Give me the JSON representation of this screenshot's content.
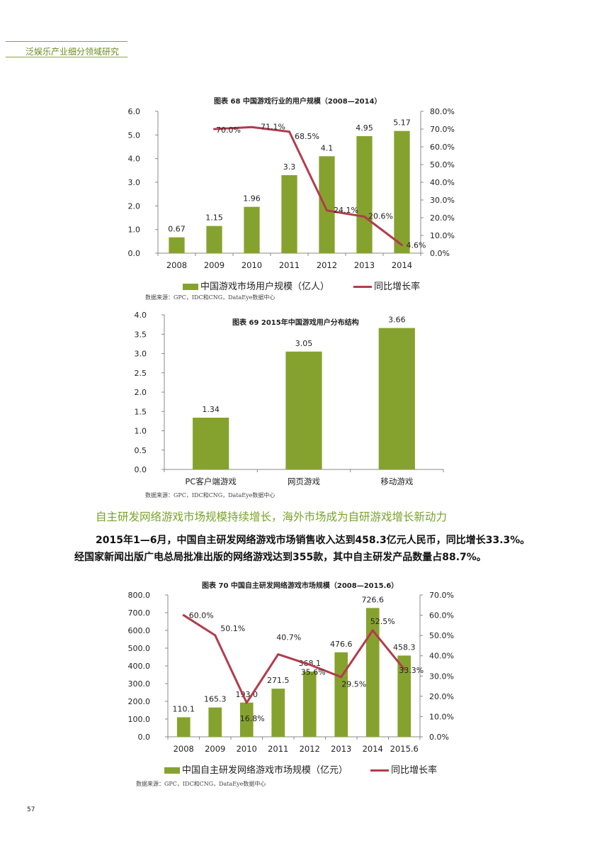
{
  "header": {
    "title": "泛娱乐产业细分领域研究"
  },
  "page_number": "57",
  "section": {
    "heading": "自主研发网络游戏市场规模持续增长，海外市场成为自研游戏增长新动力",
    "paragraph_line1": "2015年1—6月，中国自主研发网络游戏市场销售收入达到458.3亿元人民币，同比增长33.3%。",
    "paragraph_line2": "经国家新闻出版广电总局批准出版的网络游戏达到355款，其中自主研发产品数量占88.7%。"
  },
  "colors": {
    "bar": "#86a22e",
    "line": "#b13c4c",
    "accent": "#7aa22a"
  },
  "chart_data": [
    {
      "type": "bar",
      "title": "图表 68 中国游戏行业的用户规模（2008—2014）",
      "categories": [
        "2008",
        "2009",
        "2010",
        "2011",
        "2012",
        "2013",
        "2014"
      ],
      "series": [
        {
          "name": "中国游戏市场用户规模（亿人）",
          "type": "bar",
          "values": [
            0.67,
            1.15,
            1.96,
            3.3,
            4.1,
            4.95,
            5.17
          ],
          "labels": [
            "0.67",
            "1.15",
            "1.96",
            "3.3",
            "4.1",
            "4.95",
            "5.17"
          ]
        },
        {
          "name": "同比增长率",
          "type": "line",
          "axis": "right",
          "values": [
            null,
            70.0,
            71.1,
            68.5,
            24.1,
            20.6,
            4.6
          ],
          "labels": [
            "",
            "70.0%",
            "71.1%",
            "68.5%",
            "24.1%",
            "20.6%",
            "4.6%"
          ]
        }
      ],
      "y_left": {
        "ylim": [
          0,
          6
        ],
        "ticks": [
          "0.0",
          "1.0",
          "2.0",
          "3.0",
          "4.0",
          "5.0",
          "6.0"
        ]
      },
      "y_right": {
        "ylim": [
          0,
          80
        ],
        "ticks": [
          "0.0%",
          "10.0%",
          "20.0%",
          "30.0%",
          "40.0%",
          "50.0%",
          "60.0%",
          "70.0%",
          "80.0%"
        ]
      },
      "legend": "bottom",
      "source": "数据来源：GPC，IDC和CNG，DataEye数据中心"
    },
    {
      "type": "bar",
      "title": "图表 69 2015年中国游戏用户分布结构",
      "categories": [
        "PC客户端游戏",
        "网页游戏",
        "移动游戏"
      ],
      "values": [
        1.34,
        3.05,
        3.66
      ],
      "labels": [
        "1.34",
        "3.05",
        "3.66"
      ],
      "y_left": {
        "ylim": [
          0,
          4
        ],
        "ticks": [
          "0.0",
          "0.5",
          "1.0",
          "1.5",
          "2.0",
          "2.5",
          "3.0",
          "3.5",
          "4.0"
        ]
      },
      "source": "数据来源：GPC，IDC和CNG，DataEye数据中心"
    },
    {
      "type": "bar",
      "title": "图表 70 中国自主研发网络游戏市场规模（2008—2015.6）",
      "categories": [
        "2008",
        "2009",
        "2010",
        "2011",
        "2012",
        "2013",
        "2014",
        "2015.6"
      ],
      "series": [
        {
          "name": "中国自主研发网络游戏市场规模（亿元）",
          "type": "bar",
          "values": [
            110.1,
            165.3,
            193.0,
            271.5,
            368.1,
            476.6,
            726.6,
            458.3
          ],
          "labels": [
            "110.1",
            "165.3",
            "193.0",
            "271.5",
            "368.1",
            "476.6",
            "726.6",
            "458.3"
          ]
        },
        {
          "name": "同比增长率",
          "type": "line",
          "axis": "right",
          "values": [
            60.0,
            50.1,
            16.8,
            40.7,
            35.6,
            29.5,
            52.5,
            33.3
          ],
          "labels": [
            "60.0%",
            "50.1%",
            "16.8%",
            "40.7%",
            "35.6%",
            "29.5%",
            "52.5%",
            "33.3%"
          ]
        }
      ],
      "y_left": {
        "ylim": [
          0,
          800
        ],
        "ticks": [
          "0.0",
          "100.0",
          "200.0",
          "300.0",
          "400.0",
          "500.0",
          "600.0",
          "700.0",
          "800.0"
        ]
      },
      "y_right": {
        "ylim": [
          0,
          70
        ],
        "ticks": [
          "0.0%",
          "10.0%",
          "20.0%",
          "30.0%",
          "40.0%",
          "50.0%",
          "60.0%",
          "70.0%"
        ]
      },
      "legend": "bottom",
      "source": "数据来源：GPC，IDC和CNG，DataEye数据中心"
    }
  ]
}
